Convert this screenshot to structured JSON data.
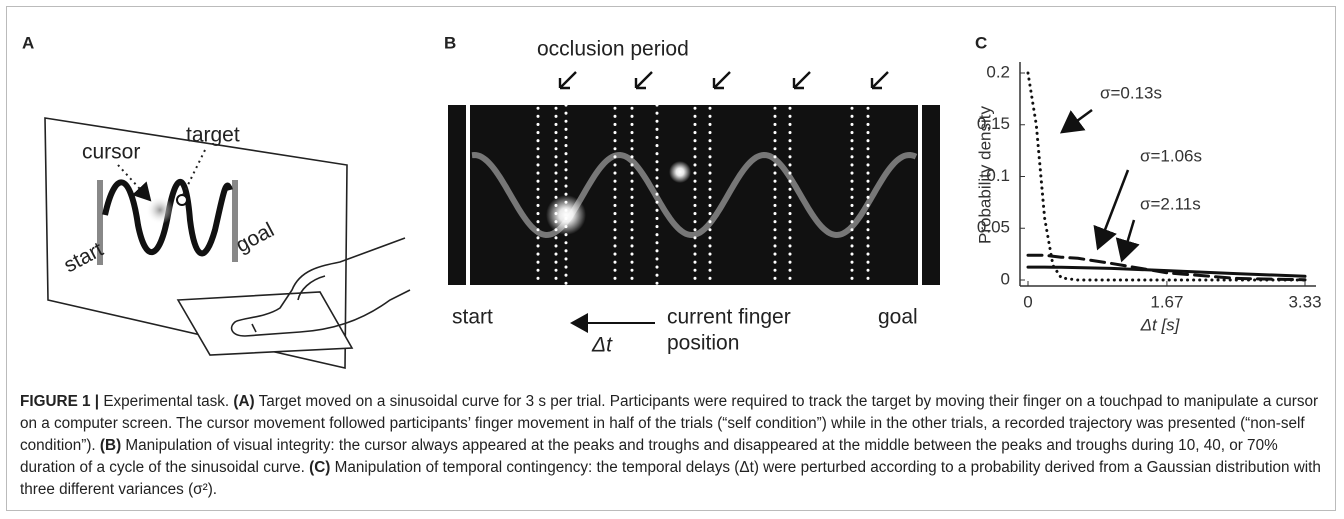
{
  "panel_a": {
    "label": "A",
    "cursor": "cursor",
    "target": "target",
    "start": "start",
    "goal": "goal"
  },
  "panel_b": {
    "label": "B",
    "occlusion": "occlusion period",
    "start": "start",
    "goal": "goal",
    "finger_line1": "current finger",
    "finger_line2": "position",
    "delta": "Δt"
  },
  "panel_c": {
    "label": "C"
  },
  "chart_data": {
    "type": "line",
    "ylabel": "Probability density",
    "xlabel": "Δt [s]",
    "x": [
      0,
      0.1,
      0.2,
      0.3,
      0.4,
      0.6,
      1,
      1.67,
      2.5,
      3.33
    ],
    "series": [
      {
        "name": "σ=0.13s",
        "color": "#111111",
        "dash": "dotted",
        "values": [
          0.2,
          0.15,
          0.06,
          0.014,
          0.002,
          0,
          0,
          0,
          0,
          0
        ]
      },
      {
        "name": "σ=1.06s",
        "color": "#111111",
        "dash": "dashed",
        "values": [
          0.024,
          0.024,
          0.024,
          0.023,
          0.022,
          0.021,
          0.016,
          0.007,
          0.0015,
          0.0002
        ]
      },
      {
        "name": "σ=2.11s",
        "color": "#111111",
        "dash": "solid",
        "values": [
          0.0125,
          0.0125,
          0.0125,
          0.0124,
          0.0123,
          0.012,
          0.0112,
          0.0091,
          0.0062,
          0.0036
        ]
      }
    ],
    "xlim": [
      0,
      3.33
    ],
    "ylim": [
      0,
      0.2
    ],
    "xticks": [
      0,
      1.67,
      3.33
    ],
    "yticks": [
      0,
      0.05,
      0.1,
      0.15,
      0.2
    ]
  },
  "caption": {
    "segments": [
      "FIGURE 1 |",
      "Experimental task.",
      "(A)",
      "Target moved on a sinusoidal curve for 3 s per trial. Participants were required to track the target by moving their finger on a touchpad to manipulate a cursor on a computer screen. The cursor movement followed participants’ finger movement in half of the trials (“self condition”) while in the other trials, a recorded trajectory was presented (“non-self condition”).",
      "(B)",
      "Manipulation of visual integrity: the cursor always appeared at the peaks and troughs and disappeared at the middle between the peaks and troughs during 10, 40, or 70% duration of a cycle of the sinusoidal curve.",
      "(C)",
      "Manipulation of temporal contingency: the temporal delays (Δt) were perturbed according to a probability derived from a Gaussian distribution with three different variances (σ²)."
    ]
  }
}
